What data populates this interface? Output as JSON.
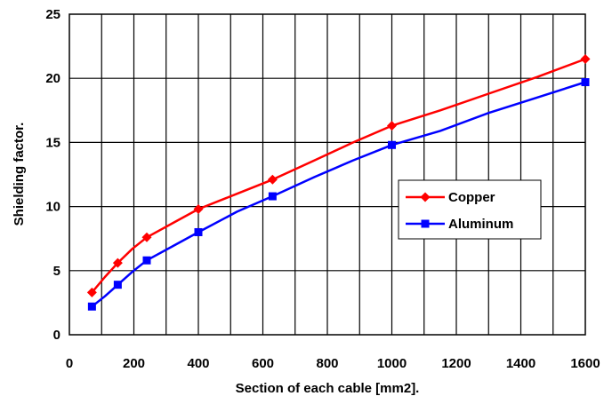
{
  "chart_data": {
    "type": "line",
    "xlabel": "Section of each cable [mm2].",
    "ylabel": "Shielding factor.",
    "xlim": [
      0,
      1600
    ],
    "ylim": [
      0,
      25
    ],
    "xticks": [
      "0",
      "200",
      "400",
      "600",
      "800",
      "1000",
      "1200",
      "1400",
      "1600"
    ],
    "yticks": [
      "0",
      "5",
      "10",
      "15",
      "20",
      "25"
    ],
    "grid": true,
    "legend_position": "right",
    "series": [
      {
        "name": "Copper",
        "color": "#ff0000",
        "marker": "diamond",
        "points": [
          [
            70,
            3.3
          ],
          [
            150,
            5.6
          ],
          [
            240,
            7.6
          ],
          [
            400,
            9.8
          ],
          [
            630,
            12.1
          ],
          [
            1000,
            16.3
          ],
          [
            1600,
            21.5
          ]
        ],
        "curve": [
          [
            70,
            3.3
          ],
          [
            110,
            4.5
          ],
          [
            150,
            5.6
          ],
          [
            195,
            6.7
          ],
          [
            240,
            7.6
          ],
          [
            320,
            8.7
          ],
          [
            400,
            9.8
          ],
          [
            520,
            11.0
          ],
          [
            630,
            12.1
          ],
          [
            760,
            13.6
          ],
          [
            880,
            15.0
          ],
          [
            1000,
            16.3
          ],
          [
            1150,
            17.5
          ],
          [
            1300,
            18.8
          ],
          [
            1450,
            20.1
          ],
          [
            1600,
            21.5
          ]
        ]
      },
      {
        "name": "Aluminum",
        "color": "#0000ff",
        "marker": "square",
        "points": [
          [
            70,
            2.2
          ],
          [
            150,
            3.9
          ],
          [
            240,
            5.8
          ],
          [
            400,
            8.0
          ],
          [
            630,
            10.8
          ],
          [
            1000,
            14.8
          ],
          [
            1600,
            19.7
          ]
        ],
        "curve": [
          [
            70,
            2.2
          ],
          [
            110,
            3.0
          ],
          [
            150,
            3.9
          ],
          [
            195,
            4.9
          ],
          [
            240,
            5.8
          ],
          [
            320,
            6.9
          ],
          [
            400,
            8.0
          ],
          [
            520,
            9.6
          ],
          [
            630,
            10.8
          ],
          [
            760,
            12.3
          ],
          [
            880,
            13.6
          ],
          [
            1000,
            14.8
          ],
          [
            1150,
            15.9
          ],
          [
            1300,
            17.3
          ],
          [
            1450,
            18.5
          ],
          [
            1600,
            19.7
          ]
        ]
      }
    ]
  }
}
